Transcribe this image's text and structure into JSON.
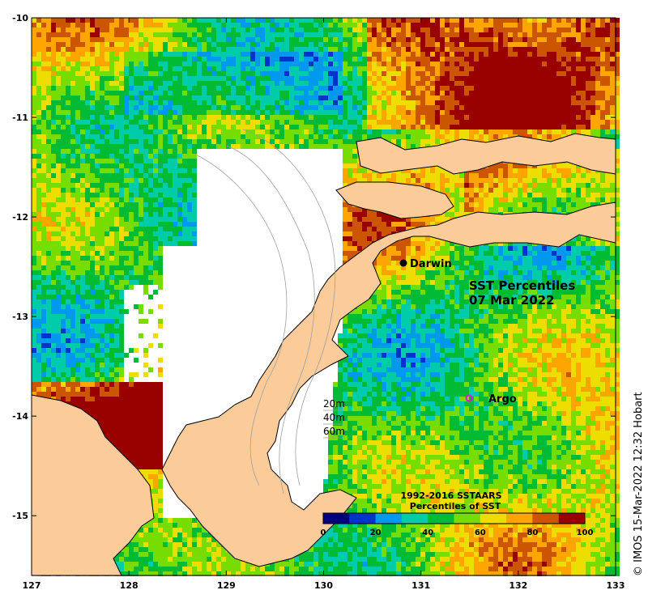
{
  "map": {
    "lon_ticks": [
      "127",
      "128",
      "129",
      "130",
      "131",
      "132",
      "133"
    ],
    "lat_ticks": [
      "-10",
      "-11",
      "-12",
      "-13",
      "-14",
      "-15"
    ],
    "lon_range": [
      127,
      133
    ],
    "lat_range": [
      -15.6,
      -10
    ],
    "title_line1": "SST Percentiles",
    "title_line2": "07 Mar 2022",
    "places": [
      {
        "name": "Darwin",
        "lon": 130.85,
        "lat": -12.45
      },
      {
        "name": "Argo",
        "lon": 131.5,
        "lat": -13.8
      }
    ],
    "depth_legend": [
      "20m",
      "40m",
      "60m"
    ],
    "colorbar": {
      "title1": "1992-2016 SSTAARS",
      "title2": "Percentiles of SST",
      "ticks": [
        "0",
        "20",
        "40",
        "60",
        "80",
        "100"
      ],
      "colors": [
        "#00007f",
        "#0033cc",
        "#0099ee",
        "#00ccaa",
        "#00bb33",
        "#77dd00",
        "#eedd00",
        "#ffa500",
        "#cc5500",
        "#990000"
      ]
    },
    "credit": "© IMOS 15-Mar-2022 12:32 Hobart",
    "colors": {
      "land": "#fccb9a",
      "nodata": "#ffffff",
      "coast": "#000000",
      "bathy": "#a0a0a0",
      "argo": "#ff00ff"
    }
  }
}
